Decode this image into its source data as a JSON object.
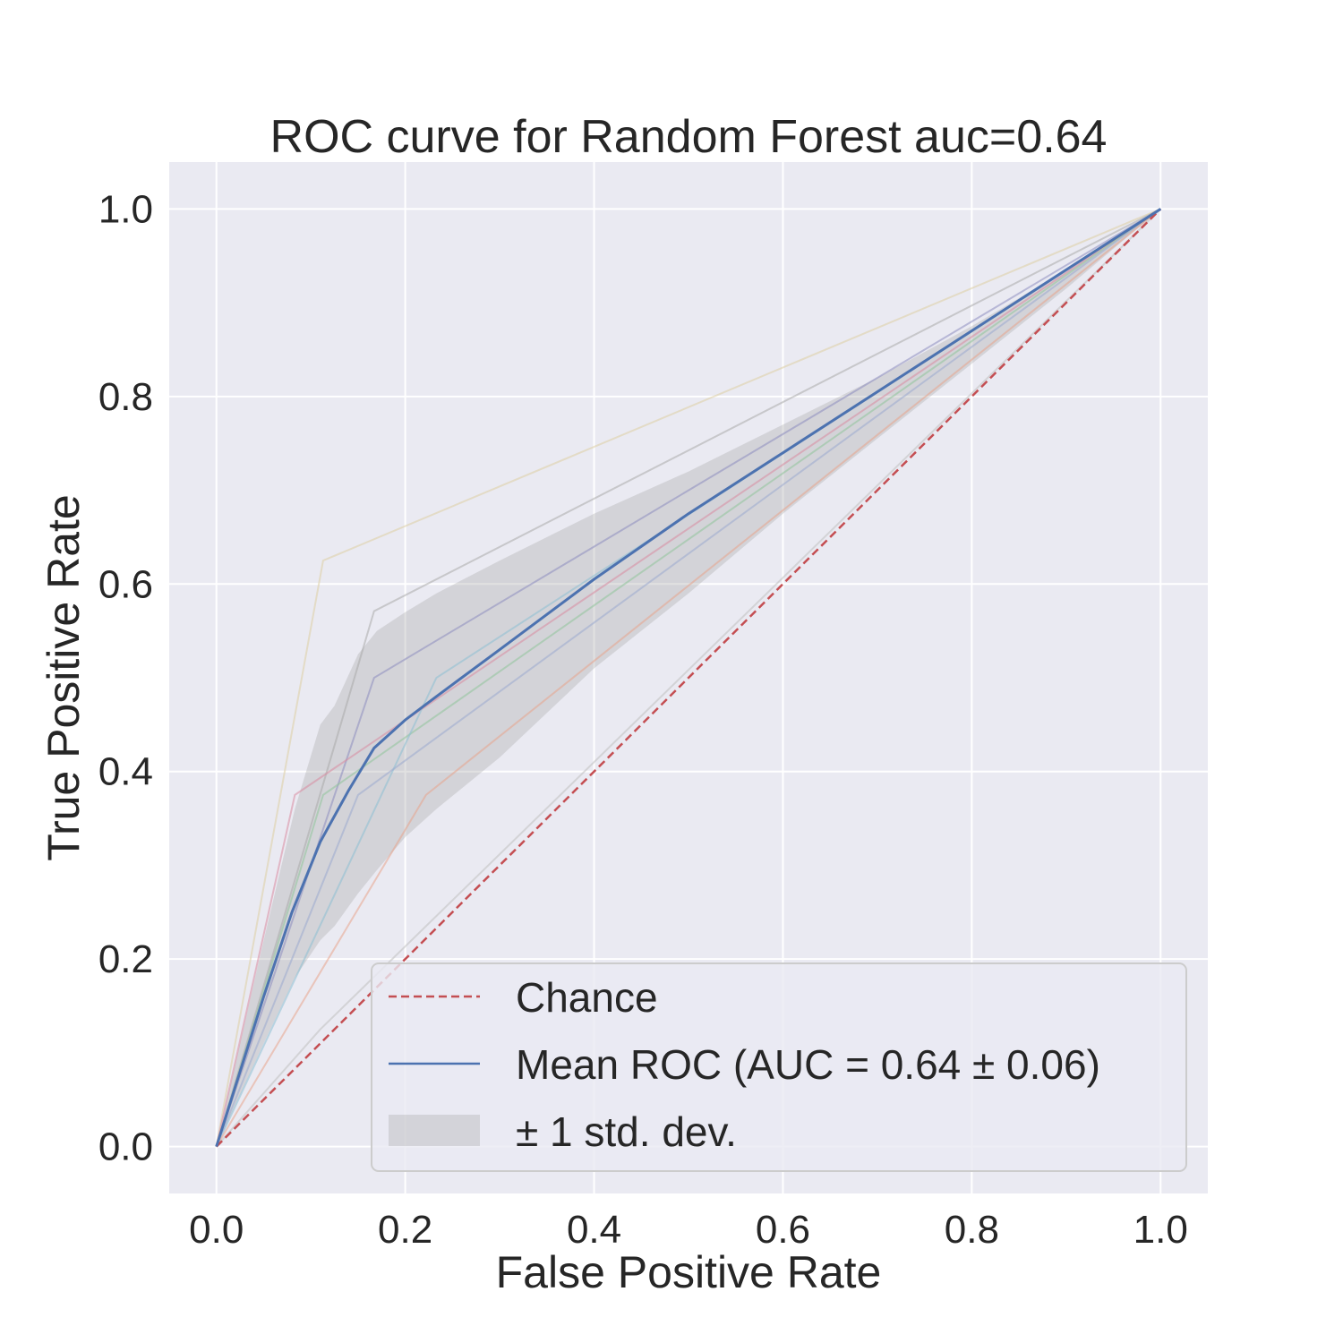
{
  "chart_data": {
    "type": "line",
    "title": "ROC curve for Random Forest auc=0.64",
    "xlabel": "False Positive Rate",
    "ylabel": "True Positive Rate",
    "xlim": [
      -0.05,
      1.05
    ],
    "ylim": [
      -0.05,
      1.05
    ],
    "xticks": [
      "0.0",
      "0.2",
      "0.4",
      "0.6",
      "0.8",
      "1.0"
    ],
    "yticks": [
      "0.0",
      "0.2",
      "0.4",
      "0.6",
      "0.8",
      "1.0"
    ],
    "grid": true,
    "legend_position": "lower right",
    "legend": [
      {
        "label": "Chance",
        "kind": "dashed-line",
        "color": "#c44e52"
      },
      {
        "label": "Mean ROC (AUC = 0.64 ± 0.06)",
        "kind": "line",
        "color": "#4c72b0"
      },
      {
        "label": "± 1 std. dev.",
        "kind": "patch",
        "color": "#a9a9a9"
      }
    ],
    "chance": {
      "x": [
        0,
        1
      ],
      "y": [
        0,
        1
      ],
      "color": "#c44e52"
    },
    "mean_roc": {
      "color": "#4c72b0",
      "x": [
        0,
        0.05,
        0.08,
        0.11,
        0.14,
        0.167,
        0.2,
        0.233,
        0.3,
        0.4,
        0.5,
        0.6,
        0.7,
        0.8,
        0.9,
        1.0
      ],
      "y": [
        0,
        0.16,
        0.25,
        0.325,
        0.38,
        0.425,
        0.455,
        0.48,
        0.53,
        0.605,
        0.675,
        0.74,
        0.805,
        0.87,
        0.935,
        1.0
      ]
    },
    "std_band": {
      "color": "#a9a9a9",
      "x": [
        0,
        0.05,
        0.083,
        0.11,
        0.125,
        0.15,
        0.17,
        0.2,
        0.233,
        0.3,
        0.4,
        0.5,
        0.6,
        0.7,
        0.8,
        0.9,
        1.0
      ],
      "upper": [
        0,
        0.22,
        0.36,
        0.45,
        0.47,
        0.525,
        0.55,
        0.57,
        0.59,
        0.625,
        0.675,
        0.72,
        0.77,
        0.82,
        0.875,
        0.935,
        1.0
      ],
      "lower": [
        0,
        0.11,
        0.18,
        0.22,
        0.235,
        0.27,
        0.295,
        0.33,
        0.36,
        0.415,
        0.51,
        0.59,
        0.675,
        0.755,
        0.835,
        0.915,
        1.0
      ]
    },
    "fold_curves": [
      {
        "color": "#dccda3",
        "x": [
          0,
          0.113,
          1
        ],
        "y": [
          0,
          0.625,
          1
        ]
      },
      {
        "color": "#a9a9a9",
        "x": [
          0,
          0.167,
          1
        ],
        "y": [
          0,
          0.571,
          1
        ]
      },
      {
        "color": "#8c8cc0",
        "x": [
          0,
          0.167,
          1
        ],
        "y": [
          0,
          0.5,
          1
        ]
      },
      {
        "color": "#d98aa0",
        "x": [
          0,
          0.083,
          1
        ],
        "y": [
          0,
          0.375,
          1
        ]
      },
      {
        "color": "#8fc49a",
        "x": [
          0,
          0.113,
          1
        ],
        "y": [
          0,
          0.375,
          1
        ]
      },
      {
        "color": "#8cbfd4",
        "x": [
          0,
          0.233,
          1
        ],
        "y": [
          0,
          0.5,
          1
        ]
      },
      {
        "color": "#9aa9d0",
        "x": [
          0,
          0.15,
          1
        ],
        "y": [
          0,
          0.375,
          1
        ]
      },
      {
        "color": "#e7a48d",
        "x": [
          0,
          0.222,
          1
        ],
        "y": [
          0,
          0.375,
          1
        ]
      },
      {
        "color": "#c0c0c0",
        "x": [
          0,
          0.11,
          1
        ],
        "y": [
          0,
          0.125,
          1
        ]
      }
    ]
  }
}
